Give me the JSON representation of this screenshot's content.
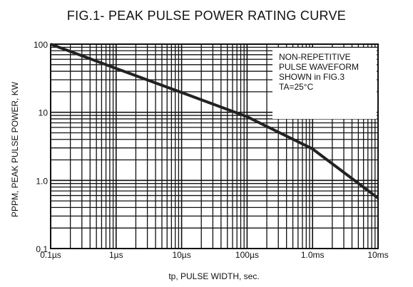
{
  "chart_data": {
    "type": "line",
    "title": "FIG.1- PEAK PULSE POWER RATING CURVE",
    "xlabel": "tp, PULSE WIDTH, sec.",
    "ylabel": "PPPM, PEAK PULSE POWER, KW",
    "x_scale": "log",
    "y_scale": "log",
    "x_unit": "s",
    "xlim": [
      1e-07,
      0.01
    ],
    "ylim": [
      0.1,
      100
    ],
    "x_ticks": [
      1e-07,
      1e-06,
      1e-05,
      0.0001,
      0.001,
      0.01
    ],
    "x_tick_labels": [
      "0.1µs",
      "1µs",
      "10µs",
      "100µs",
      "1.0ms",
      "10ms"
    ],
    "y_ticks": [
      0.1,
      1.0,
      10,
      100
    ],
    "y_tick_labels": [
      "0.1",
      "1.0",
      "10",
      "100"
    ],
    "grid": true,
    "series": [
      {
        "x": [
          1e-07,
          1e-06,
          1e-05,
          0.0001,
          0.001,
          0.01
        ],
        "y": [
          100,
          44,
          19.5,
          8.6,
          2.9,
          0.55
        ]
      }
    ],
    "annotation": [
      "NON-REPETITIVE",
      "PULSE WAVEFORM",
      "SHOWN in FIG.3",
      "TA=25°C"
    ],
    "colors": {
      "line": "#222222",
      "grid": "#111111",
      "background": "#ffffff"
    }
  }
}
